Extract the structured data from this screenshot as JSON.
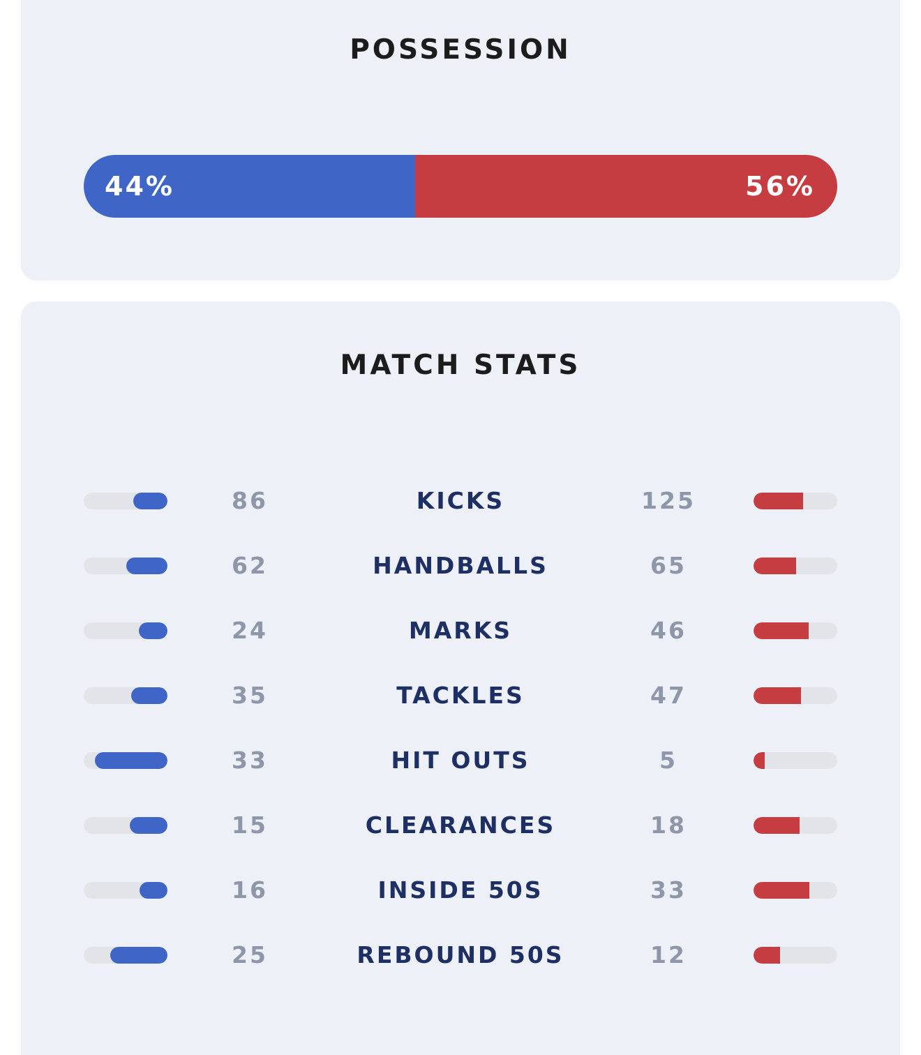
{
  "possession": {
    "title": "POSSESSION",
    "home_pct": 44,
    "away_pct": 56,
    "home_label": "44%",
    "away_label": "56%"
  },
  "match_stats": {
    "title": "MATCH STATS",
    "rows": [
      {
        "label": "KICKS",
        "home": "86",
        "away": "125",
        "home_fill": 0.41,
        "away_fill": 0.59
      },
      {
        "label": "HANDBALLS",
        "home": "62",
        "away": "65",
        "home_fill": 0.49,
        "away_fill": 0.51
      },
      {
        "label": "MARKS",
        "home": "24",
        "away": "46",
        "home_fill": 0.34,
        "away_fill": 0.66
      },
      {
        "label": "TACKLES",
        "home": "35",
        "away": "47",
        "home_fill": 0.43,
        "away_fill": 0.57
      },
      {
        "label": "HIT OUTS",
        "home": "33",
        "away": "5",
        "home_fill": 0.87,
        "away_fill": 0.13
      },
      {
        "label": "CLEARANCES",
        "home": "15",
        "away": "18",
        "home_fill": 0.45,
        "away_fill": 0.55
      },
      {
        "label": "INSIDE 50S",
        "home": "16",
        "away": "33",
        "home_fill": 0.33,
        "away_fill": 0.67
      },
      {
        "label": "REBOUND 50S",
        "home": "25",
        "away": "12",
        "home_fill": 0.68,
        "away_fill": 0.32
      }
    ]
  },
  "colors": {
    "home": "#3f66c6",
    "away": "#c63d41",
    "track": "#e3e4e8"
  }
}
